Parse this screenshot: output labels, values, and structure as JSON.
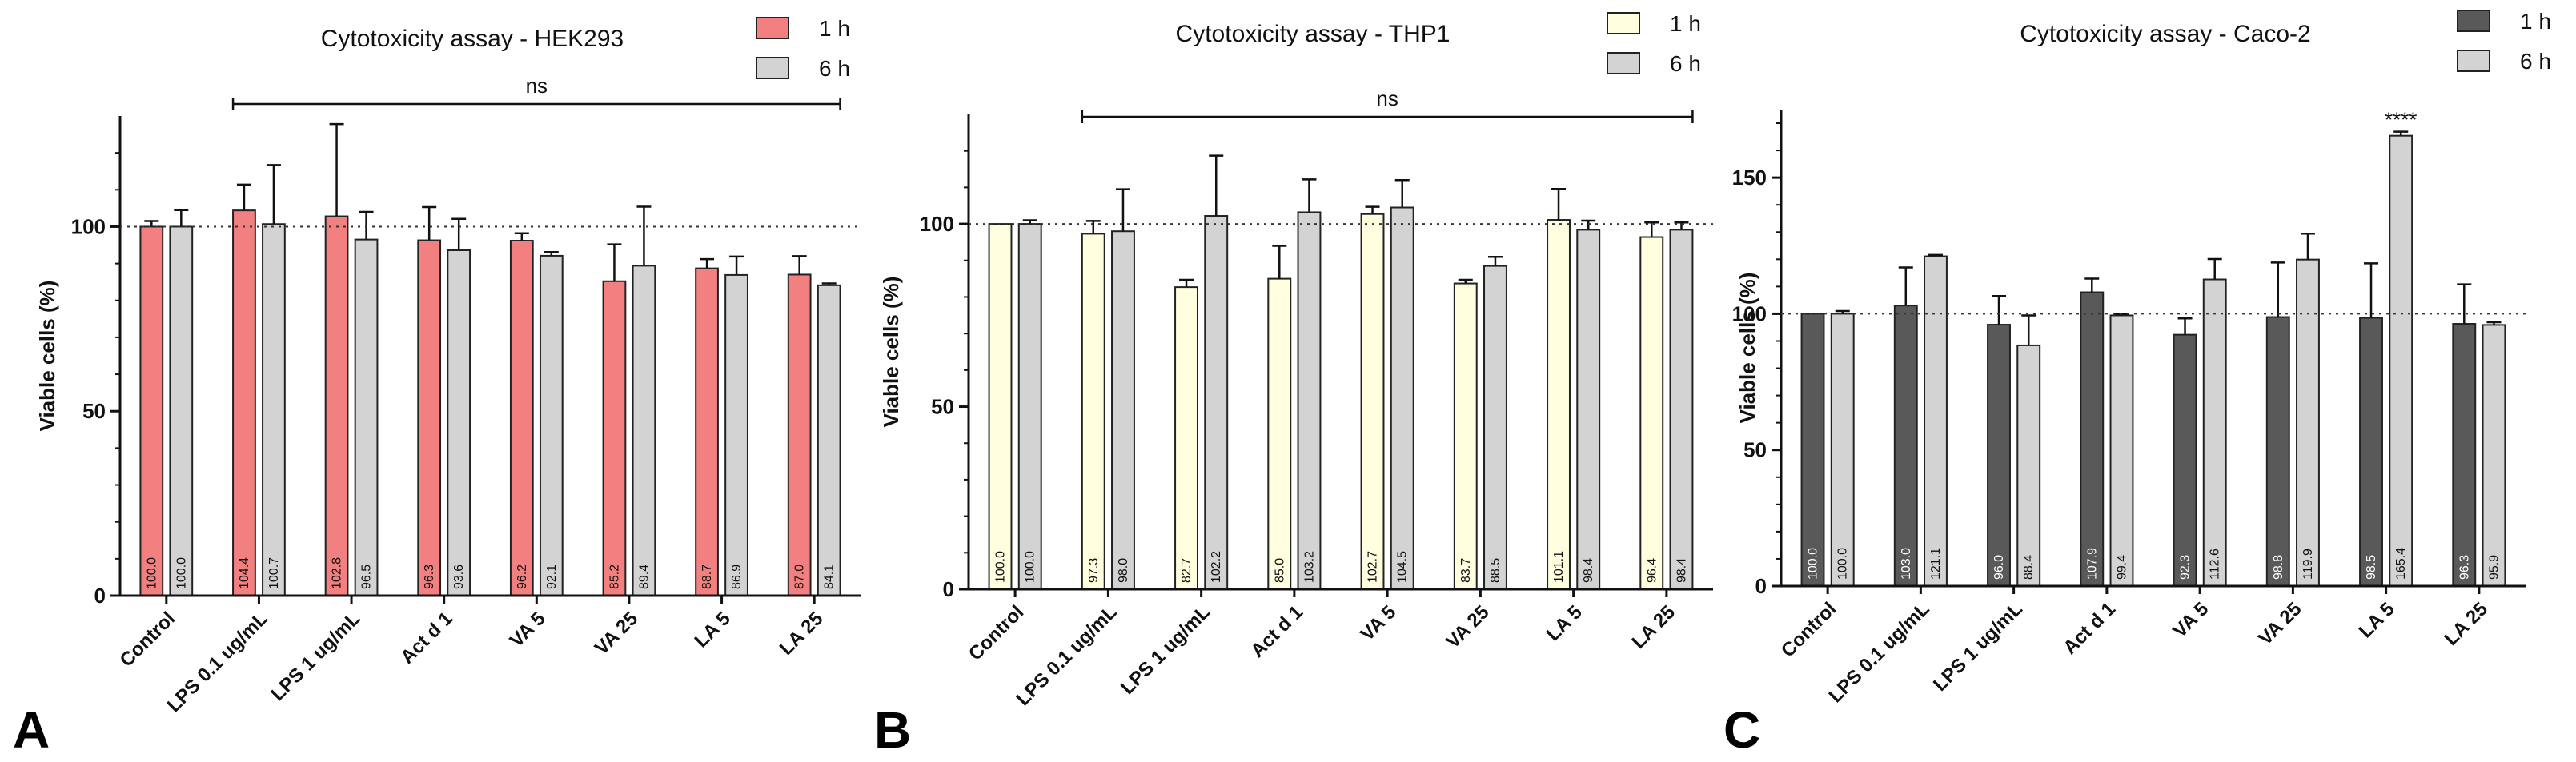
{
  "chart_data": [
    {
      "panel": "A",
      "type": "bar",
      "title": "Cytotoxicity assay - HEK293",
      "ylabel": "Viable cells (%)",
      "xlabel": "",
      "ylim": [
        0,
        130
      ],
      "yticks": [
        0,
        50,
        100
      ],
      "reference_line": 100,
      "categories": [
        "Control",
        "LPS 0.1 ug/mL",
        "LPS 1 ug/mL",
        "Act d 1",
        "VA 5",
        "VA 25",
        "LA 5",
        "LA 25"
      ],
      "series": [
        {
          "name": "1 h",
          "color": "#F28080",
          "values": [
            100.0,
            104.4,
            102.8,
            96.3,
            96.2,
            85.2,
            88.7,
            87.0
          ],
          "errors": [
            1.5,
            7,
            25,
            9,
            2,
            10,
            2.5,
            5
          ],
          "labels": [
            "100.0",
            "104.4",
            "102.8",
            "96.3",
            "96.2",
            "85.2",
            "88.7",
            "87.0"
          ]
        },
        {
          "name": "6 h",
          "color": "#D3D3D3",
          "values": [
            100.0,
            100.7,
            96.5,
            93.6,
            92.1,
            89.4,
            86.9,
            84.1
          ],
          "errors": [
            4.5,
            16,
            7.5,
            8.5,
            1,
            16,
            5,
            0.5
          ],
          "labels": [
            "100.0",
            "100.7",
            "96.5",
            "93.6",
            "92.1",
            "89.4",
            "86.9",
            "84.1"
          ]
        }
      ],
      "annotations": [
        {
          "text": "ns",
          "from": "LPS 0.1 ug/mL",
          "to": "LA 25",
          "y": 127
        }
      ]
    },
    {
      "panel": "B",
      "type": "bar",
      "title": "Cytotoxicity assay - THP1",
      "ylabel": "Viable cells (%)",
      "xlabel": "",
      "ylim": [
        0,
        130
      ],
      "yticks": [
        0,
        50,
        100
      ],
      "reference_line": 100,
      "categories": [
        "Control",
        "LPS 0.1 ug/mL",
        "LPS 1 ug/mL",
        "Act d 1",
        "VA 5",
        "VA 25",
        "LA 5",
        "LA 25"
      ],
      "series": [
        {
          "name": "1 h",
          "color": "#FFFFE0",
          "values": [
            100.0,
            97.3,
            82.7,
            85.0,
            102.7,
            83.7,
            101.1,
            96.4
          ],
          "errors": [
            0,
            3.5,
            2,
            9,
            2,
            1,
            8.5,
            4
          ],
          "labels": [
            "100.0",
            "97.3",
            "82.7",
            "85.0",
            "102.7",
            "83.7",
            "101.1",
            "96.4"
          ]
        },
        {
          "name": "6 h",
          "color": "#D3D3D3",
          "values": [
            100.0,
            98.0,
            102.2,
            103.2,
            104.5,
            88.5,
            98.4,
            98.4
          ],
          "errors": [
            1,
            11.5,
            16.5,
            9,
            7.5,
            2.5,
            2.5,
            2
          ],
          "labels": [
            "100.0",
            "98.0",
            "102.2",
            "103.2",
            "104.5",
            "88.5",
            "98.4",
            "98.4"
          ]
        }
      ],
      "annotations": [
        {
          "text": "ns",
          "from": "LPS 0.1 ug/mL",
          "to": "LA 25",
          "y": 127
        }
      ]
    },
    {
      "panel": "C",
      "type": "bar",
      "title": "Cytotoxicity assay - Caco-2",
      "ylabel": "Viable cells (%)",
      "xlabel": "",
      "ylim": [
        0,
        175
      ],
      "yticks": [
        0,
        50,
        100,
        150
      ],
      "reference_line": 100,
      "categories": [
        "Control",
        "LPS 0.1 ug/mL",
        "LPS 1 ug/mL",
        "Act d 1",
        "VA 5",
        "VA 25",
        "LA 5",
        "LA 25"
      ],
      "series": [
        {
          "name": "1 h",
          "color": "#595959",
          "values": [
            100.0,
            103.0,
            96.0,
            107.9,
            92.3,
            98.8,
            98.5,
            96.3
          ],
          "errors": [
            0,
            14,
            10.5,
            5,
            6,
            20,
            20,
            14.5
          ],
          "labels": [
            "100.0",
            "103.0",
            "96.0",
            "107.9",
            "92.3",
            "98.8",
            "98.5",
            "96.3"
          ]
        },
        {
          "name": "6 h",
          "color": "#D3D3D3",
          "values": [
            100.0,
            121.1,
            88.4,
            99.4,
            112.6,
            119.9,
            165.4,
            95.9
          ],
          "errors": [
            1,
            0.5,
            11,
            0.5,
            7.5,
            9.5,
            1.5,
            1
          ],
          "labels": [
            "100.0",
            "121.1",
            "88.4",
            "99.4",
            "112.6",
            "119.9",
            "165.4",
            "95.9"
          ]
        }
      ],
      "annotations": [
        {
          "text": "****",
          "category": "LA 5",
          "series": "6 h"
        }
      ]
    }
  ]
}
